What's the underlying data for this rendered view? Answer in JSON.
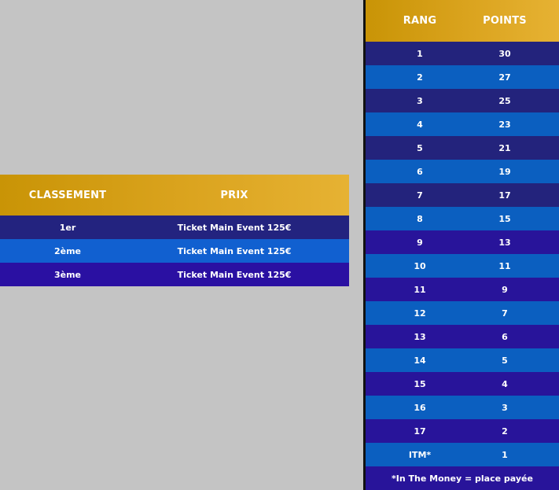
{
  "colors": {
    "gold_start": "#c99406",
    "gold_end": "#e6b233",
    "row_navy": "#23237f",
    "row_blue": "#0f5fc5",
    "row_violet": "#2a0fa0",
    "background": "#c4c4c4",
    "divider": "#111111"
  },
  "prize_table": {
    "headers": {
      "rank": "CLASSEMENT",
      "prize": "PRIX"
    },
    "rows": [
      {
        "rank": "1er",
        "prize": "Ticket Main Event 125€",
        "color": "#23237f"
      },
      {
        "rank": "2ème",
        "prize": "Ticket Main Event 125€",
        "color": "#1160d0"
      },
      {
        "rank": "3ème",
        "prize": "Ticket Main Event 125€",
        "color": "#2a10a2"
      }
    ]
  },
  "points_table": {
    "headers": {
      "rank": "RANG",
      "points": "POINTS"
    },
    "rows": [
      {
        "rank": "1",
        "points": "30",
        "color": "#23237c"
      },
      {
        "rank": "2",
        "points": "27",
        "color": "#0b5fc0"
      },
      {
        "rank": "3",
        "points": "25",
        "color": "#23237c"
      },
      {
        "rank": "4",
        "points": "23",
        "color": "#0b5fc0"
      },
      {
        "rank": "5",
        "points": "21",
        "color": "#23237c"
      },
      {
        "rank": "6",
        "points": "19",
        "color": "#0b5fc0"
      },
      {
        "rank": "7",
        "points": "17",
        "color": "#23237c"
      },
      {
        "rank": "8",
        "points": "15",
        "color": "#0b5fc0"
      },
      {
        "rank": "9",
        "points": "13",
        "color": "#28149a"
      },
      {
        "rank": "10",
        "points": "11",
        "color": "#0b5fc0"
      },
      {
        "rank": "11",
        "points": "9",
        "color": "#28149a"
      },
      {
        "rank": "12",
        "points": "7",
        "color": "#0b5fc0"
      },
      {
        "rank": "13",
        "points": "6",
        "color": "#28149a"
      },
      {
        "rank": "14",
        "points": "5",
        "color": "#0b5fc0"
      },
      {
        "rank": "15",
        "points": "4",
        "color": "#28149a"
      },
      {
        "rank": "16",
        "points": "3",
        "color": "#0b5fc0"
      },
      {
        "rank": "17",
        "points": "2",
        "color": "#28149a"
      },
      {
        "rank": "ITM*",
        "points": "1",
        "color": "#0b5fc0"
      }
    ],
    "footnote": "*In The Money = place payée",
    "footnote_color": "#28149a"
  }
}
